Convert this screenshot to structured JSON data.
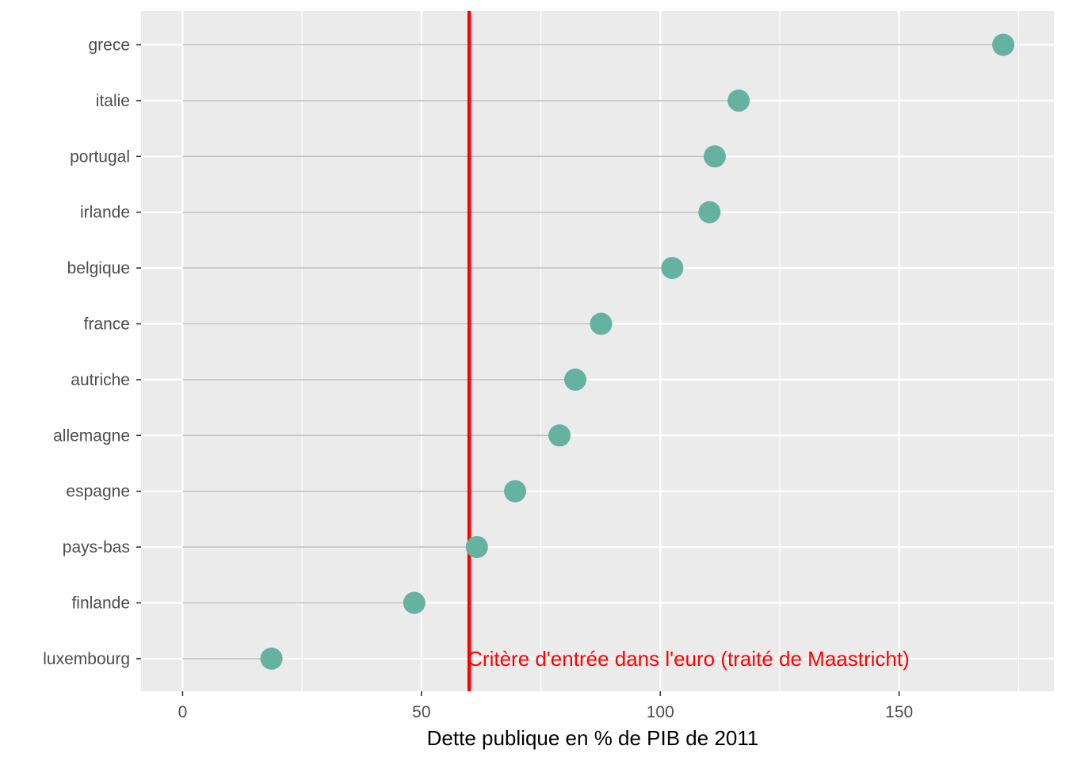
{
  "chart_data": {
    "type": "scatter",
    "subtype": "lollipop",
    "title": "",
    "xlabel": "Dette publique en % de PIB de 2011",
    "ylabel": "",
    "xlim": [
      -8.7,
      182.4
    ],
    "xticks": [
      0,
      50,
      100,
      150
    ],
    "grid": true,
    "categories": [
      "grece",
      "italie",
      "portugal",
      "irlande",
      "belgique",
      "france",
      "autriche",
      "allemagne",
      "espagne",
      "pays-bas",
      "finlande",
      "luxembourg"
    ],
    "values": [
      171.8,
      116.4,
      111.4,
      110.3,
      102.5,
      87.6,
      82.2,
      78.9,
      69.6,
      61.6,
      48.5,
      18.6
    ],
    "reference_line": {
      "x": 60,
      "label": "Critère d'entrée dans l'euro (traité de Maastricht)",
      "color": "#ff0000"
    },
    "colors": {
      "point": "#66b2a1",
      "segment": "#bebebe",
      "panel": "#ebebeb",
      "grid": "#ffffff"
    }
  }
}
